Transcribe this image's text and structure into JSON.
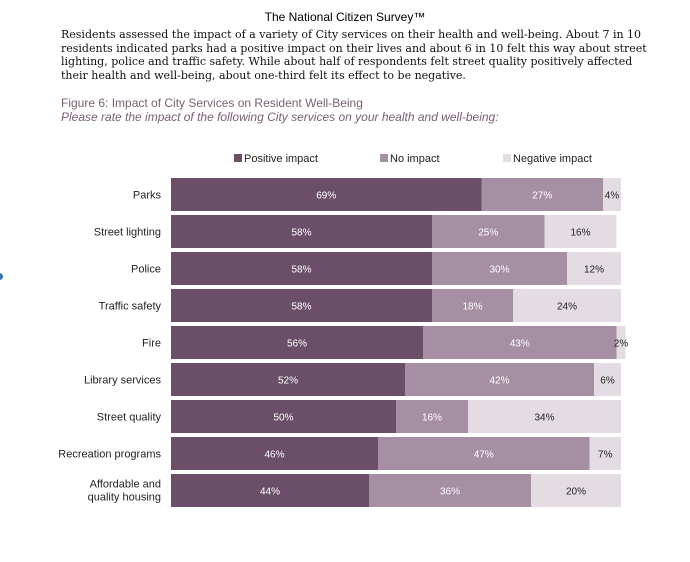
{
  "header": "The National Citizen Survey™",
  "intro": "Residents assessed the impact of a variety of City services on their health and well-being. About 7 in 10 residents indicated parks had a positive impact on their lives and about 6 in 10 felt this way about street lighting, police and traffic safety. While about half of respondents felt street quality positively affected their health and well-being, about one-third felt its effect to be negative.",
  "figure": {
    "title": "Figure 6: Impact of City Services on Resident Well-Being",
    "subtitle": "Please rate the impact of the following City services on your health and well-being:"
  },
  "chart_data": {
    "type": "bar",
    "orientation": "horizontal",
    "stacked": true,
    "legend_position": "top",
    "xlim": [
      0,
      100
    ],
    "categories": [
      "Parks",
      "Street lighting",
      "Police",
      "Traffic safety",
      "Fire",
      "Library services",
      "Street quality",
      "Recreation programs",
      "Affordable and quality housing"
    ],
    "series": [
      {
        "name": "Positive impact",
        "color": "#6b4f68",
        "label_color": "#ffffff",
        "values": [
          69,
          58,
          58,
          58,
          56,
          52,
          50,
          46,
          44
        ]
      },
      {
        "name": "No impact",
        "color": "#a68ea3",
        "label_color": "#ffffff",
        "values": [
          27,
          25,
          30,
          18,
          43,
          42,
          16,
          47,
          36
        ]
      },
      {
        "name": "Negative impact",
        "color": "#e3dce2",
        "label_color": "#222222",
        "values": [
          4,
          16,
          12,
          24,
          2,
          6,
          34,
          7,
          20
        ]
      }
    ],
    "value_suffix": "%"
  }
}
